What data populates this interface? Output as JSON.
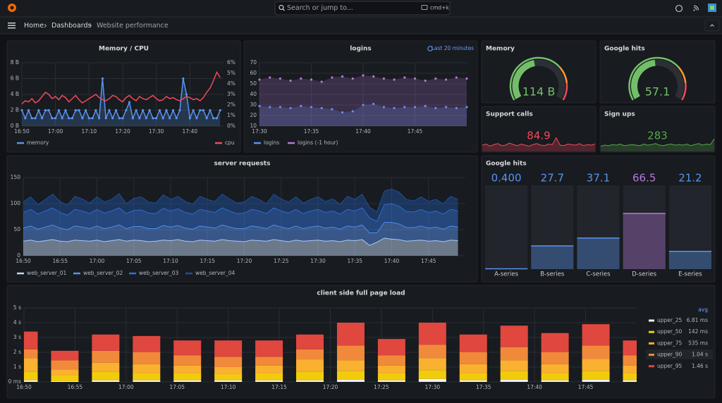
{
  "header": {
    "search": "Search or jump to...",
    "shortcut": "cmd+k",
    "breadcrumbs": [
      "Home",
      "Dashboards",
      "Website performance"
    ]
  },
  "chart_data": [
    {
      "type": "line",
      "title": "Memory / CPU",
      "x": [
        "16:50",
        "16:51",
        "16:52",
        "16:53",
        "16:54",
        "16:55",
        "16:56",
        "16:57",
        "16:58",
        "16:59",
        "17:00",
        "17:01",
        "17:02",
        "17:03",
        "17:04",
        "17:05",
        "17:06",
        "17:07",
        "17:08",
        "17:09",
        "17:10",
        "17:11",
        "17:12",
        "17:13",
        "17:14",
        "17:15",
        "17:16",
        "17:17",
        "17:18",
        "17:19",
        "17:20",
        "17:21",
        "17:22",
        "17:23",
        "17:24",
        "17:25",
        "17:26",
        "17:27",
        "17:28",
        "17:29",
        "17:30",
        "17:31",
        "17:32",
        "17:33",
        "17:34",
        "17:35",
        "17:36",
        "17:37",
        "17:38",
        "17:39",
        "17:40",
        "17:41",
        "17:42",
        "17:43",
        "17:44",
        "17:45",
        "17:46",
        "17:47",
        "17:48",
        "17:49"
      ],
      "xlim": [
        "16:50",
        "17:50"
      ],
      "xticks": [
        "16:50",
        "17:00",
        "17:10",
        "17:20",
        "17:30",
        "17:40"
      ],
      "ylim": [
        0,
        8
      ],
      "yticks": [
        {
          "value": 0,
          "label": "0 B"
        },
        {
          "value": 2,
          "label": "2 B"
        },
        {
          "value": 4,
          "label": "4 B"
        },
        {
          "value": 6,
          "label": "6 B"
        },
        {
          "value": 8,
          "label": "8 B"
        }
      ],
      "y2lim": [
        0,
        6
      ],
      "y2ticks": [
        {
          "value": 0,
          "label": "0%"
        },
        {
          "value": 1,
          "label": "1%"
        },
        {
          "value": 2,
          "label": "2%"
        },
        {
          "value": 3,
          "label": "3%"
        },
        {
          "value": 4,
          "label": "4%"
        },
        {
          "value": 5,
          "label": "5%"
        },
        {
          "value": 6,
          "label": "6%"
        }
      ],
      "grid": true,
      "series": [
        {
          "name": "memory",
          "color": "#5794f2",
          "fill": true,
          "points": true,
          "values": [
            2,
            1,
            2,
            1,
            1,
            2,
            1,
            2,
            2,
            1,
            1,
            2,
            1,
            2,
            1,
            1,
            2,
            2,
            1,
            2,
            1,
            1,
            2,
            1,
            6,
            1,
            2,
            1,
            2,
            1,
            1,
            2,
            3,
            1,
            2,
            1,
            2,
            1,
            2,
            1,
            1,
            2,
            1,
            2,
            1,
            2,
            1,
            2,
            6,
            4,
            1,
            2,
            1,
            2,
            2,
            1,
            2,
            1,
            1,
            2
          ]
        },
        {
          "name": "cpu",
          "color": "#f2495c",
          "axis": "y2",
          "values": [
            2.1,
            2.4,
            2.3,
            2.6,
            2.2,
            2.4,
            2.8,
            3.2,
            3.0,
            2.6,
            2.8,
            2.5,
            2.9,
            2.7,
            2.3,
            2.6,
            2.9,
            2.5,
            2.2,
            2.4,
            2.6,
            2.8,
            3.0,
            2.7,
            2.5,
            2.4,
            2.6,
            2.9,
            2.8,
            2.5,
            2.3,
            2.7,
            2.9,
            2.6,
            2.4,
            2.8,
            2.6,
            2.5,
            2.7,
            2.9,
            2.6,
            2.4,
            2.5,
            2.8,
            2.6,
            2.7,
            2.5,
            2.4,
            2.6,
            2.8,
            2.7,
            2.5,
            2.6,
            2.4,
            2.7,
            3.2,
            3.6,
            4.3,
            5.1,
            4.6
          ]
        }
      ]
    },
    {
      "type": "line",
      "title": "logins",
      "time_range": "Last 20 minutes",
      "x": [
        "17:30",
        "17:31",
        "17:32",
        "17:33",
        "17:34",
        "17:35",
        "17:36",
        "17:37",
        "17:38",
        "17:39",
        "17:40",
        "17:41",
        "17:42",
        "17:43",
        "17:44",
        "17:45",
        "17:46",
        "17:47",
        "17:48",
        "17:49",
        "17:50"
      ],
      "xlim": [
        "17:30",
        "17:50"
      ],
      "xticks": [
        "17:30",
        "17:35",
        "17:40",
        "17:45"
      ],
      "ylim": [
        10,
        70
      ],
      "yticks": [
        10,
        20,
        30,
        40,
        50,
        60,
        70
      ],
      "grid": true,
      "series": [
        {
          "name": "logins",
          "color": "#5794f2",
          "fill": true,
          "points": true,
          "line": false,
          "values": [
            29,
            28,
            28,
            27,
            29,
            28,
            27,
            26,
            23,
            24,
            30,
            31,
            28,
            27,
            28,
            28,
            29,
            27,
            28,
            27,
            28
          ]
        },
        {
          "name": "logins (-1 hour)",
          "color": "#b877d9",
          "fill": true,
          "points": true,
          "line": false,
          "values": [
            54,
            56,
            55,
            53,
            55,
            54,
            52,
            56,
            57,
            55,
            58,
            57,
            55,
            54,
            56,
            55,
            53,
            55,
            54,
            56,
            55
          ]
        }
      ]
    },
    {
      "type": "gauge",
      "title": "Memory",
      "value": 114,
      "value_label": "114 B",
      "ylim": [
        0,
        250
      ],
      "color": "#73bf69"
    },
    {
      "type": "gauge",
      "title": "Google hits",
      "value": 57.1,
      "ylim": [
        0,
        120
      ],
      "color": "#73bf69"
    },
    {
      "type": "stat",
      "title": "Support calls",
      "value": 84.9,
      "color": "#f2495c",
      "ylim": [
        0,
        40
      ],
      "values": [
        12,
        14,
        10,
        13,
        15,
        11,
        12,
        16,
        13,
        11,
        14,
        12,
        10,
        13,
        15,
        12,
        11,
        14,
        13,
        26,
        12,
        11,
        14,
        13,
        12,
        15,
        11,
        13,
        12,
        14
      ]
    },
    {
      "type": "stat",
      "title": "Sign ups",
      "value": 283,
      "color": "#56a64b",
      "ylim": [
        0,
        40
      ],
      "values": [
        10,
        12,
        11,
        13,
        12,
        14,
        11,
        12,
        13,
        12,
        11,
        14,
        12,
        13,
        15,
        12,
        11,
        13,
        14,
        12,
        13,
        12,
        14,
        11,
        13,
        15,
        12,
        14,
        13,
        24
      ]
    },
    {
      "type": "area",
      "title": "server requests",
      "stacked": true,
      "x": [
        "16:50",
        "16:51",
        "16:52",
        "16:53",
        "16:54",
        "16:55",
        "16:56",
        "16:57",
        "16:58",
        "16:59",
        "17:00",
        "17:01",
        "17:02",
        "17:03",
        "17:04",
        "17:05",
        "17:06",
        "17:07",
        "17:08",
        "17:09",
        "17:10",
        "17:11",
        "17:12",
        "17:13",
        "17:14",
        "17:15",
        "17:16",
        "17:17",
        "17:18",
        "17:19",
        "17:20",
        "17:21",
        "17:22",
        "17:23",
        "17:24",
        "17:25",
        "17:26",
        "17:27",
        "17:28",
        "17:29",
        "17:30",
        "17:31",
        "17:32",
        "17:33",
        "17:34",
        "17:35",
        "17:36",
        "17:37",
        "17:38",
        "17:39",
        "17:40",
        "17:41",
        "17:42",
        "17:43",
        "17:44",
        "17:45",
        "17:46",
        "17:47",
        "17:48",
        "17:49"
      ],
      "xlim": [
        "16:50",
        "17:50"
      ],
      "xticks": [
        "16:50",
        "16:55",
        "17:00",
        "17:05",
        "17:10",
        "17:15",
        "17:20",
        "17:25",
        "17:30",
        "17:35",
        "17:40",
        "17:45"
      ],
      "ylim": [
        0,
        150
      ],
      "yticks": [
        0,
        50,
        100,
        150
      ],
      "grid": true,
      "series": [
        {
          "name": "web_server_01",
          "color": "#c0d8f5",
          "values": [
            28,
            30,
            27,
            29,
            31,
            28,
            27,
            30,
            29,
            28,
            30,
            27,
            29,
            31,
            28,
            30,
            29,
            27,
            28,
            30,
            29,
            31,
            28,
            27,
            30,
            29,
            28,
            31,
            29,
            28,
            27,
            30,
            29,
            28,
            31,
            29,
            27,
            30,
            28,
            29,
            30,
            28,
            29,
            27,
            30,
            29,
            31,
            20,
            26,
            34,
            32,
            31,
            28,
            29,
            30,
            28,
            29,
            27,
            30,
            29
          ]
        },
        {
          "name": "web_server_02",
          "color": "#5794f2",
          "values": [
            25,
            27,
            24,
            26,
            28,
            25,
            23,
            27,
            26,
            24,
            27,
            25,
            26,
            28,
            24,
            26,
            27,
            25,
            24,
            28,
            26,
            27,
            25,
            24,
            27,
            26,
            25,
            28,
            26,
            24,
            25,
            27,
            26,
            24,
            28,
            26,
            25,
            27,
            24,
            26,
            27,
            25,
            26,
            24,
            27,
            26,
            28,
            24,
            18,
            30,
            32,
            30,
            26,
            25,
            27,
            25,
            26,
            24,
            27,
            26
          ]
        },
        {
          "name": "web_server_03",
          "color": "#3274d9",
          "values": [
            30,
            32,
            29,
            31,
            33,
            30,
            28,
            32,
            31,
            29,
            32,
            30,
            31,
            33,
            29,
            31,
            32,
            30,
            29,
            33,
            31,
            32,
            30,
            29,
            32,
            31,
            30,
            33,
            31,
            29,
            30,
            32,
            31,
            29,
            33,
            31,
            30,
            32,
            29,
            31,
            32,
            30,
            31,
            29,
            32,
            31,
            33,
            29,
            22,
            34,
            36,
            34,
            31,
            30,
            32,
            30,
            31,
            29,
            32,
            31
          ]
        },
        {
          "name": "web_server_04",
          "color": "#1f4f9c",
          "values": [
            20,
            24,
            18,
            22,
            26,
            21,
            19,
            25,
            23,
            20,
            24,
            21,
            22,
            27,
            19,
            23,
            25,
            21,
            20,
            26,
            22,
            24,
            21,
            19,
            25,
            22,
            21,
            26,
            23,
            20,
            21,
            25,
            22,
            19,
            26,
            23,
            21,
            24,
            20,
            22,
            24,
            21,
            23,
            19,
            25,
            22,
            26,
            20,
            18,
            26,
            28,
            27,
            23,
            21,
            24,
            21,
            22,
            20,
            25,
            22
          ]
        }
      ]
    },
    {
      "type": "bargauge",
      "title": "Google hits",
      "categories": [
        "A-series",
        "B-series",
        "C-series",
        "D-series",
        "E-series"
      ],
      "values": [
        0.4,
        27.7,
        37.1,
        66.5,
        21.2
      ],
      "value_labels": [
        "0.400",
        "27.7",
        "37.1",
        "66.5",
        "21.2"
      ],
      "colors": [
        "#5794f2",
        "#5794f2",
        "#5794f2",
        "#b877d9",
        "#5794f2"
      ],
      "ylim": [
        0,
        100
      ]
    },
    {
      "type": "bar",
      "title": "client side full page load",
      "stacked": true,
      "legend_column": "avg",
      "x": [
        "16:50",
        "16:54",
        "16:58",
        "17:02",
        "17:06",
        "17:10",
        "17:14",
        "17:18",
        "17:22",
        "17:26",
        "17:30",
        "17:34",
        "17:38",
        "17:42",
        "17:46",
        "17:50"
      ],
      "xlim": [
        "16:50",
        "17:50"
      ],
      "xticks": [
        "16:50",
        "16:55",
        "17:00",
        "17:05",
        "17:10",
        "17:15",
        "17:20",
        "17:25",
        "17:30",
        "17:35",
        "17:40",
        "17:45"
      ],
      "ylim": [
        0,
        5
      ],
      "yticks": [
        {
          "value": 0,
          "label": "0 ms"
        },
        {
          "value": 1,
          "label": "1 s"
        },
        {
          "value": 2,
          "label": "2 s"
        },
        {
          "value": 3,
          "label": "3 s"
        },
        {
          "value": 4,
          "label": "4 s"
        },
        {
          "value": 5,
          "label": "5 s"
        }
      ],
      "grid": true,
      "series": [
        {
          "name": "upper_25",
          "color": "#f4f4f4",
          "avg": "6.81 ms",
          "values": [
            0.1,
            0.05,
            0.1,
            0.1,
            0.1,
            0.1,
            0.1,
            0.1,
            0.15,
            0.1,
            0.2,
            0.1,
            0.15,
            0.1,
            0.15,
            0.1
          ]
        },
        {
          "name": "upper_50",
          "color": "#f2cc0c",
          "avg": "142 ms",
          "values": [
            0.6,
            0.4,
            0.6,
            0.5,
            0.5,
            0.4,
            0.5,
            0.6,
            0.6,
            0.5,
            0.6,
            0.5,
            0.6,
            0.5,
            0.6,
            0.5
          ]
        },
        {
          "name": "upper_75",
          "color": "#fab031",
          "avg": "535 ms",
          "values": [
            0.9,
            0.4,
            0.6,
            0.6,
            0.5,
            0.5,
            0.5,
            0.8,
            0.7,
            0.5,
            0.8,
            0.6,
            0.7,
            0.6,
            0.8,
            0.5
          ]
        },
        {
          "name": "upper_90",
          "color": "#f08a3a",
          "avg": "1.04 s",
          "values": [
            0.6,
            0.6,
            0.8,
            0.8,
            0.7,
            0.7,
            0.6,
            0.7,
            1.0,
            0.7,
            0.9,
            0.8,
            0.9,
            0.8,
            0.9,
            0.7
          ]
        },
        {
          "name": "upper_95",
          "color": "#e0473f",
          "avg": "1.46 s",
          "values": [
            1.2,
            0.65,
            1.1,
            1.1,
            1.0,
            1.1,
            1.1,
            1.0,
            1.55,
            1.1,
            1.5,
            1.2,
            1.45,
            1.3,
            1.45,
            1.0
          ]
        }
      ]
    }
  ]
}
